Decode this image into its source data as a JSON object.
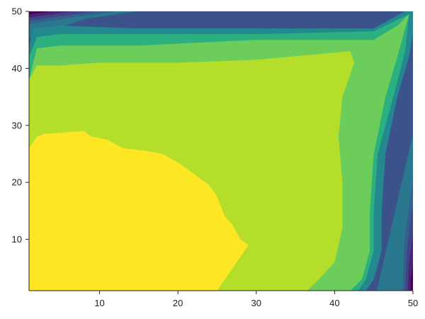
{
  "chart_data": {
    "type": "contour",
    "title": "",
    "xlabel": "",
    "ylabel": "",
    "xlim": [
      1,
      50
    ],
    "ylim": [
      1,
      50
    ],
    "x_ticks": [
      10,
      20,
      30,
      40,
      50
    ],
    "y_ticks": [
      10,
      20,
      30,
      40,
      50
    ],
    "colormap": "viridis",
    "colorbar": "none",
    "grid": false,
    "regions": [
      {
        "level": 5,
        "color": "#23898e",
        "note": "outermost ring (above darker edge bands)",
        "polygon": [
          [
            1,
            44
          ],
          [
            1.5,
            47
          ],
          [
            5,
            47.5
          ],
          [
            15,
            47
          ],
          [
            30,
            47
          ],
          [
            45,
            47
          ],
          [
            49,
            50
          ],
          [
            50,
            50
          ],
          [
            50,
            46
          ],
          [
            49.5,
            42
          ],
          [
            48,
            35
          ],
          [
            46.5,
            25
          ],
          [
            46,
            15
          ],
          [
            46,
            8
          ],
          [
            45,
            3
          ],
          [
            44,
            1
          ],
          [
            1,
            1
          ]
        ]
      },
      {
        "level": 6,
        "color": "#2cb07f",
        "polygon": [
          [
            1,
            42
          ],
          [
            2,
            45.5
          ],
          [
            5,
            46
          ],
          [
            15,
            46
          ],
          [
            30,
            46
          ],
          [
            45,
            46.5
          ],
          [
            48,
            48.5
          ],
          [
            49.5,
            49.5
          ],
          [
            49,
            43
          ],
          [
            47.5,
            35
          ],
          [
            45.5,
            25
          ],
          [
            45,
            15
          ],
          [
            45,
            8
          ],
          [
            44,
            3
          ],
          [
            43,
            1
          ],
          [
            1,
            1
          ]
        ]
      },
      {
        "level": 7,
        "color": "#6ccd5a",
        "polygon": [
          [
            1,
            38
          ],
          [
            2,
            43.5
          ],
          [
            5,
            44
          ],
          [
            15,
            44
          ],
          [
            30,
            45
          ],
          [
            45,
            45
          ],
          [
            48,
            47.5
          ],
          [
            49.5,
            49.5
          ],
          [
            48,
            42
          ],
          [
            46.5,
            35
          ],
          [
            45,
            25
          ],
          [
            44.5,
            15
          ],
          [
            44.5,
            8
          ],
          [
            43.5,
            3
          ],
          [
            42,
            1
          ],
          [
            1,
            1
          ]
        ]
      },
      {
        "level": 8,
        "color": "#b5de2b",
        "polygon": [
          [
            1,
            38
          ],
          [
            2,
            40.5
          ],
          [
            5,
            40.5
          ],
          [
            10,
            41
          ],
          [
            20,
            41
          ],
          [
            30,
            41.5
          ],
          [
            42,
            43
          ],
          [
            42.5,
            41
          ],
          [
            41,
            35
          ],
          [
            40.5,
            28
          ],
          [
            41,
            20
          ],
          [
            41,
            12
          ],
          [
            40,
            6
          ],
          [
            38,
            3
          ],
          [
            36.5,
            1
          ],
          [
            1,
            1
          ]
        ]
      },
      {
        "level": 9,
        "color": "#fde725",
        "polygon": [
          [
            1,
            26
          ],
          [
            2,
            28
          ],
          [
            3,
            28.5
          ],
          [
            8,
            29
          ],
          [
            9,
            28
          ],
          [
            11,
            27.5
          ],
          [
            13,
            26
          ],
          [
            16,
            25.5
          ],
          [
            18,
            25
          ],
          [
            20,
            23.5
          ],
          [
            22,
            21.5
          ],
          [
            24,
            19.5
          ],
          [
            25,
            17.5
          ],
          [
            26,
            14
          ],
          [
            27,
            12.5
          ],
          [
            28,
            10
          ],
          [
            29,
            9
          ],
          [
            28,
            7
          ],
          [
            27,
            5
          ],
          [
            26,
            3
          ],
          [
            25,
            1
          ],
          [
            1,
            1
          ]
        ]
      }
    ],
    "base_fill": "#3b528b",
    "corner_bands": [
      {
        "corner": "top-left",
        "colors": [
          "#440154",
          "#482475",
          "#414487",
          "#355f8d",
          "#2a788e"
        ]
      },
      {
        "corner": "bottom-right",
        "colors": [
          "#440154",
          "#482475",
          "#414487",
          "#355f8d",
          "#2a788e"
        ]
      }
    ]
  }
}
